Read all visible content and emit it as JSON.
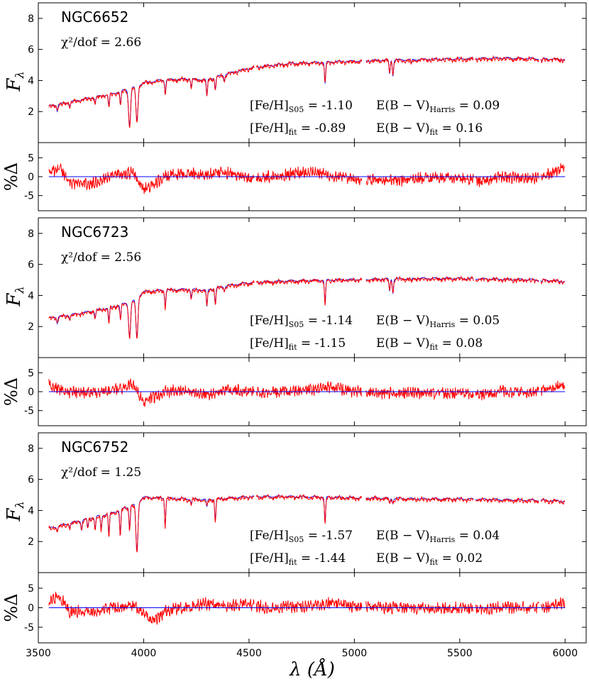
{
  "figure": {
    "xlabel": "λ (Å)",
    "xlim": [
      3500,
      6100
    ],
    "xticks": [
      3500,
      4000,
      4500,
      5000,
      5500,
      6000
    ],
    "flux_ylabel": "F",
    "flux_ylabel_sub": "λ",
    "resid_ylabel": "%Δ",
    "flux_ylim": [
      0,
      9
    ],
    "flux_yticks": [
      2,
      4,
      6,
      8
    ],
    "resid_ylim": [
      -9,
      9
    ],
    "resid_yticks": [
      -5,
      0,
      5
    ],
    "colors": {
      "model": "#0000ff",
      "observed": "#ff0000",
      "zero_line": "#0000ff",
      "axes": "#000000"
    }
  },
  "chart_data": [
    {
      "type": "line",
      "cluster": "NGC6652",
      "chi2_label": "χ²/dof = 2.66",
      "chi2": 2.66,
      "feh_s05_label": "[Fe/H]S05 = -1.10",
      "feh_s05": -1.1,
      "ebv_harris_label": "E(B − V)Harris = 0.09",
      "ebv_harris": 0.09,
      "feh_fit_label": "[Fe/H]fit = -0.89",
      "feh_fit": -0.89,
      "ebv_fit_label": "E(B − V)fit = 0.16",
      "ebv_fit": 0.16,
      "continuum": [
        [
          3550,
          2.3
        ],
        [
          3700,
          2.7
        ],
        [
          3850,
          3.1
        ],
        [
          3950,
          3.5
        ],
        [
          4000,
          3.8
        ],
        [
          4100,
          4.0
        ],
        [
          4200,
          4.05
        ],
        [
          4300,
          4.0
        ],
        [
          4400,
          4.4
        ],
        [
          4520,
          4.8
        ],
        [
          4700,
          5.05
        ],
        [
          4900,
          5.15
        ],
        [
          5100,
          5.25
        ],
        [
          5300,
          5.3
        ],
        [
          5500,
          5.35
        ],
        [
          5700,
          5.4
        ],
        [
          5900,
          5.35
        ],
        [
          6000,
          5.3
        ]
      ],
      "absorption_lines": [
        [
          3590,
          0.4
        ],
        [
          3650,
          0.3
        ],
        [
          3770,
          0.4
        ],
        [
          3835,
          0.8
        ],
        [
          3890,
          0.9
        ],
        [
          3933,
          2.4
        ],
        [
          3968,
          2.3
        ],
        [
          4102,
          0.9
        ],
        [
          4226,
          0.5
        ],
        [
          4300,
          1.1
        ],
        [
          4340,
          0.8
        ],
        [
          4383,
          0.4
        ],
        [
          4861,
          1.4
        ],
        [
          5167,
          0.9
        ],
        [
          5183,
          1.0
        ],
        [
          5270,
          0.3
        ],
        [
          5890,
          0.2
        ]
      ],
      "residual_offsets": [
        [
          3550,
          1.0
        ],
        [
          3600,
          2.5
        ],
        [
          3650,
          -1.5
        ],
        [
          3750,
          -2.0
        ],
        [
          3850,
          0.5
        ],
        [
          3950,
          1.0
        ],
        [
          4000,
          -3.5
        ],
        [
          4050,
          -2.0
        ],
        [
          4100,
          0.0
        ],
        [
          4200,
          0.8
        ],
        [
          4300,
          0.5
        ],
        [
          4400,
          1.0
        ],
        [
          4500,
          -0.5
        ],
        [
          4600,
          0.0
        ],
        [
          4800,
          1.5
        ],
        [
          4900,
          0.0
        ],
        [
          5000,
          -0.8
        ],
        [
          5200,
          -1.0
        ],
        [
          5400,
          0.0
        ],
        [
          5550,
          -0.8
        ],
        [
          5600,
          -1.2
        ],
        [
          5700,
          0.0
        ],
        [
          5850,
          -0.5
        ],
        [
          5950,
          1.0
        ],
        [
          6000,
          2.8
        ]
      ]
    },
    {
      "type": "line",
      "cluster": "NGC6723",
      "chi2_label": "χ²/dof = 2.56",
      "chi2": 2.56,
      "feh_s05_label": "[Fe/H]S05 = -1.14",
      "feh_s05": -1.14,
      "ebv_harris_label": "E(B − V)Harris = 0.05",
      "ebv_harris": 0.05,
      "feh_fit_label": "[Fe/H]fit = -1.15",
      "feh_fit": -1.15,
      "ebv_fit_label": "E(B − V)fit = 0.08",
      "ebv_fit": 0.08,
      "continuum": [
        [
          3550,
          2.5
        ],
        [
          3700,
          2.8
        ],
        [
          3850,
          3.2
        ],
        [
          3950,
          3.6
        ],
        [
          4000,
          4.2
        ],
        [
          4100,
          4.3
        ],
        [
          4200,
          4.35
        ],
        [
          4300,
          4.3
        ],
        [
          4400,
          4.6
        ],
        [
          4520,
          4.8
        ],
        [
          4700,
          4.9
        ],
        [
          4900,
          4.95
        ],
        [
          5100,
          5.0
        ],
        [
          5300,
          5.05
        ],
        [
          5500,
          5.05
        ],
        [
          5700,
          5.0
        ],
        [
          5900,
          4.95
        ],
        [
          6000,
          4.85
        ]
      ],
      "absorption_lines": [
        [
          3590,
          0.4
        ],
        [
          3650,
          0.3
        ],
        [
          3770,
          0.5
        ],
        [
          3835,
          0.9
        ],
        [
          3890,
          1.0
        ],
        [
          3933,
          2.2
        ],
        [
          3968,
          2.6
        ],
        [
          4102,
          1.1
        ],
        [
          4226,
          0.5
        ],
        [
          4300,
          1.1
        ],
        [
          4340,
          1.0
        ],
        [
          4383,
          0.3
        ],
        [
          4861,
          1.6
        ],
        [
          5167,
          0.8
        ],
        [
          5183,
          0.9
        ],
        [
          5270,
          0.2
        ],
        [
          5890,
          0.2
        ]
      ],
      "residual_offsets": [
        [
          3550,
          2.0
        ],
        [
          3600,
          0.5
        ],
        [
          3700,
          -0.5
        ],
        [
          3800,
          0.0
        ],
        [
          3900,
          1.0
        ],
        [
          3950,
          2.0
        ],
        [
          4000,
          -3.0
        ],
        [
          4050,
          -1.5
        ],
        [
          4100,
          0.0
        ],
        [
          4200,
          0.5
        ],
        [
          4300,
          -1.0
        ],
        [
          4400,
          0.5
        ],
        [
          4500,
          0.0
        ],
        [
          4600,
          -0.2
        ],
        [
          4800,
          0.5
        ],
        [
          4900,
          1.2
        ],
        [
          5000,
          0.0
        ],
        [
          5200,
          -0.5
        ],
        [
          5400,
          -0.3
        ],
        [
          5600,
          -0.8
        ],
        [
          5700,
          0.0
        ],
        [
          5850,
          0.0
        ],
        [
          5950,
          1.0
        ],
        [
          6000,
          1.8
        ]
      ]
    },
    {
      "type": "line",
      "cluster": "NGC6752",
      "chi2_label": "χ²/dof = 1.25",
      "chi2": 1.25,
      "feh_s05_label": "[Fe/H]S05 = -1.57",
      "feh_s05": -1.57,
      "ebv_harris_label": "E(B − V)Harris = 0.04",
      "ebv_harris": 0.04,
      "feh_fit_label": "[Fe/H]fit = -1.44",
      "feh_fit": -1.44,
      "ebv_fit_label": "E(B − V)fit = 0.02",
      "ebv_fit": 0.02,
      "continuum": [
        [
          3550,
          2.8
        ],
        [
          3700,
          3.3
        ],
        [
          3850,
          3.8
        ],
        [
          3950,
          4.3
        ],
        [
          4000,
          4.8
        ],
        [
          4100,
          4.75
        ],
        [
          4200,
          4.7
        ],
        [
          4300,
          4.65
        ],
        [
          4400,
          4.75
        ],
        [
          4520,
          4.85
        ],
        [
          4700,
          4.85
        ],
        [
          4900,
          4.8
        ],
        [
          5100,
          4.75
        ],
        [
          5300,
          4.7
        ],
        [
          5500,
          4.7
        ],
        [
          5700,
          4.65
        ],
        [
          5900,
          4.6
        ],
        [
          6000,
          4.55
        ]
      ],
      "absorption_lines": [
        [
          3590,
          0.3
        ],
        [
          3650,
          0.3
        ],
        [
          3705,
          0.6
        ],
        [
          3735,
          0.6
        ],
        [
          3770,
          0.8
        ],
        [
          3798,
          0.9
        ],
        [
          3835,
          1.4
        ],
        [
          3889,
          1.7
        ],
        [
          3933,
          1.5
        ],
        [
          3968,
          3.2
        ],
        [
          4102,
          1.8
        ],
        [
          4226,
          0.3
        ],
        [
          4300,
          0.5
        ],
        [
          4340,
          1.4
        ],
        [
          4861,
          1.7
        ],
        [
          5167,
          0.3
        ],
        [
          5183,
          0.3
        ]
      ],
      "residual_offsets": [
        [
          3550,
          1.5
        ],
        [
          3600,
          3.0
        ],
        [
          3650,
          -1.0
        ],
        [
          3750,
          -1.0
        ],
        [
          3850,
          0.0
        ],
        [
          3950,
          0.5
        ],
        [
          4000,
          -1.5
        ],
        [
          4050,
          -3.5
        ],
        [
          4100,
          -1.0
        ],
        [
          4200,
          0.0
        ],
        [
          4300,
          1.0
        ],
        [
          4400,
          0.5
        ],
        [
          4500,
          0.8
        ],
        [
          4600,
          0.0
        ],
        [
          4800,
          0.5
        ],
        [
          4900,
          1.5
        ],
        [
          5000,
          0.2
        ],
        [
          5200,
          0.0
        ],
        [
          5400,
          0.0
        ],
        [
          5600,
          -0.3
        ],
        [
          5700,
          0.0
        ],
        [
          5850,
          0.0
        ],
        [
          5950,
          0.5
        ],
        [
          6000,
          1.5
        ]
      ]
    }
  ],
  "common": {
    "segments": [
      [
        3550,
        4525
      ],
      [
        4535,
        5035
      ],
      [
        5055,
        5565
      ],
      [
        5575,
        5875
      ],
      [
        5885,
        6000
      ]
    ],
    "residual_zero": 0
  }
}
